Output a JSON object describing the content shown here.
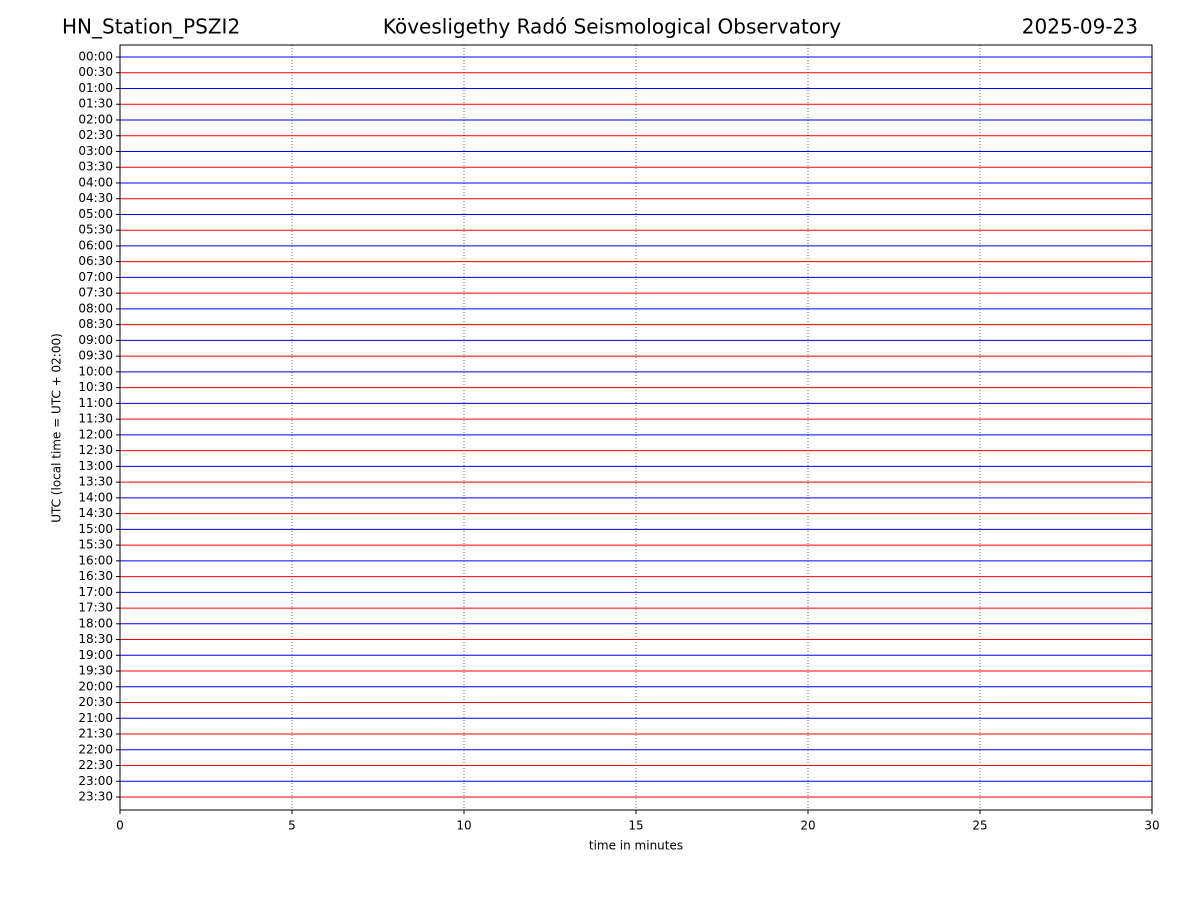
{
  "chart_data": {
    "type": "helicorder",
    "title": "Kövesligethy Radó Seismological Observatory",
    "left_title": "HN_Station_PSZI2",
    "right_title": "2025-09-23",
    "rows": [
      "00:00",
      "00:30",
      "01:00",
      "01:30",
      "02:00",
      "02:30",
      "03:00",
      "03:30",
      "04:00",
      "04:30",
      "05:00",
      "05:30",
      "06:00",
      "06:30",
      "07:00",
      "07:30",
      "08:00",
      "08:30",
      "09:00",
      "09:30",
      "10:00",
      "10:30",
      "11:00",
      "11:30",
      "12:00",
      "12:30",
      "13:00",
      "13:30",
      "14:00",
      "14:30",
      "15:00",
      "15:30",
      "16:00",
      "16:30",
      "17:00",
      "17:30",
      "18:00",
      "18:30",
      "19:00",
      "19:30",
      "20:00",
      "20:30",
      "21:00",
      "21:30",
      "22:00",
      "22:30",
      "23:00",
      "23:30"
    ],
    "row_colors": [
      "#0000ff",
      "#ff0000"
    ],
    "xlim": [
      0,
      30
    ],
    "xticks": [
      0,
      5,
      10,
      15,
      20,
      25,
      30
    ],
    "xlabel": "time in minutes",
    "ylabel": "UTC (local time = UTC + 02:00)",
    "grid": true
  }
}
